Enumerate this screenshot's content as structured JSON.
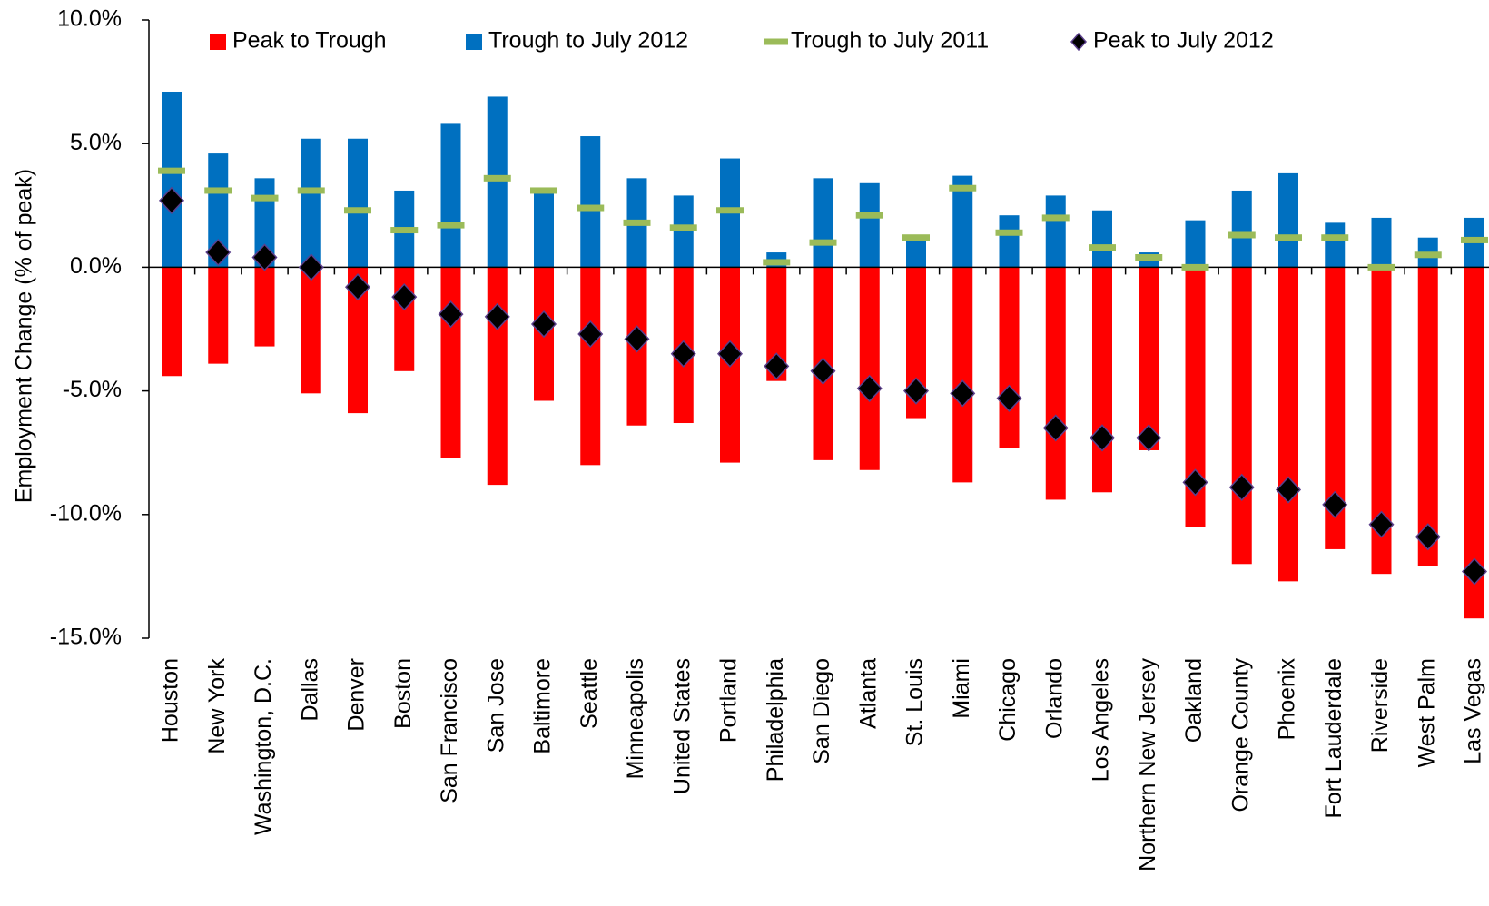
{
  "chart_data": {
    "type": "bar",
    "ylabel": "Employment Change (% of peak)",
    "categories": [
      "Houston",
      "New York",
      "Washington, D.C.",
      "Dallas",
      "Denver",
      "Boston",
      "San Francisco",
      "San Jose",
      "Baltimore",
      "Seattle",
      "Minneapolis",
      "United States",
      "Portland",
      "Philadelphia",
      "San Diego",
      "Atlanta",
      "St. Louis",
      "Miami",
      "Chicago",
      "Orlando",
      "Los Angeles",
      "Northern New Jersey",
      "Oakland",
      "Orange County",
      "Phoenix",
      "Fort Lauderdale",
      "Riverside",
      "West Palm",
      "Las Vegas"
    ],
    "series": [
      {
        "name": "Peak to Trough",
        "color": "#ff0000",
        "marker": "bar",
        "values": [
          -4.4,
          -3.9,
          -3.2,
          -5.1,
          -5.9,
          -4.2,
          -7.7,
          -8.8,
          -5.4,
          -8.0,
          -6.4,
          -6.3,
          -7.9,
          -4.6,
          -7.8,
          -8.2,
          -6.1,
          -8.7,
          -7.3,
          -9.4,
          -9.1,
          -7.4,
          -10.5,
          -12.0,
          -12.7,
          -11.4,
          -12.4,
          -12.1,
          -14.2
        ]
      },
      {
        "name": "Trough to July 2012",
        "color": "#0070c0",
        "marker": "bar",
        "values": [
          7.1,
          4.6,
          3.6,
          5.2,
          5.2,
          3.1,
          5.8,
          6.9,
          3.2,
          5.3,
          3.6,
          2.9,
          4.4,
          0.6,
          3.6,
          3.4,
          1.2,
          3.7,
          2.1,
          2.9,
          2.3,
          0.6,
          1.9,
          3.1,
          3.8,
          1.8,
          2.0,
          1.2,
          2.0
        ]
      },
      {
        "name": "Trough to July 2011",
        "color": "#9bbb59",
        "marker": "dash",
        "values": [
          3.9,
          3.1,
          2.8,
          3.1,
          2.3,
          1.5,
          1.7,
          3.6,
          3.1,
          2.4,
          1.8,
          1.6,
          2.3,
          0.2,
          1.0,
          2.1,
          1.2,
          3.2,
          1.4,
          2.0,
          0.8,
          0.4,
          0.0,
          1.3,
          1.2,
          1.2,
          0.0,
          0.5,
          1.1
        ]
      },
      {
        "name": "Peak to July 2012",
        "color": "#000000",
        "marker": "diamond",
        "values": [
          2.7,
          0.6,
          0.4,
          0.0,
          -0.8,
          -1.2,
          -1.9,
          -2.0,
          -2.3,
          -2.7,
          -2.9,
          -3.5,
          -3.5,
          -4.0,
          -4.2,
          -4.9,
          -5.0,
          -5.1,
          -5.3,
          -6.5,
          -6.9,
          -6.9,
          -8.7,
          -8.9,
          -9.0,
          -9.6,
          -10.4,
          -10.9,
          -12.3
        ]
      }
    ],
    "ylim": [
      -15,
      10
    ],
    "yticks": [
      {
        "value": -15,
        "label": "-15.0%"
      },
      {
        "value": -10,
        "label": "-10.0%"
      },
      {
        "value": -5,
        "label": "-5.0%"
      },
      {
        "value": 0,
        "label": "0.0%"
      },
      {
        "value": 5,
        "label": "5.0%"
      },
      {
        "value": 10,
        "label": "10.0%"
      }
    ],
    "legend": "top"
  }
}
